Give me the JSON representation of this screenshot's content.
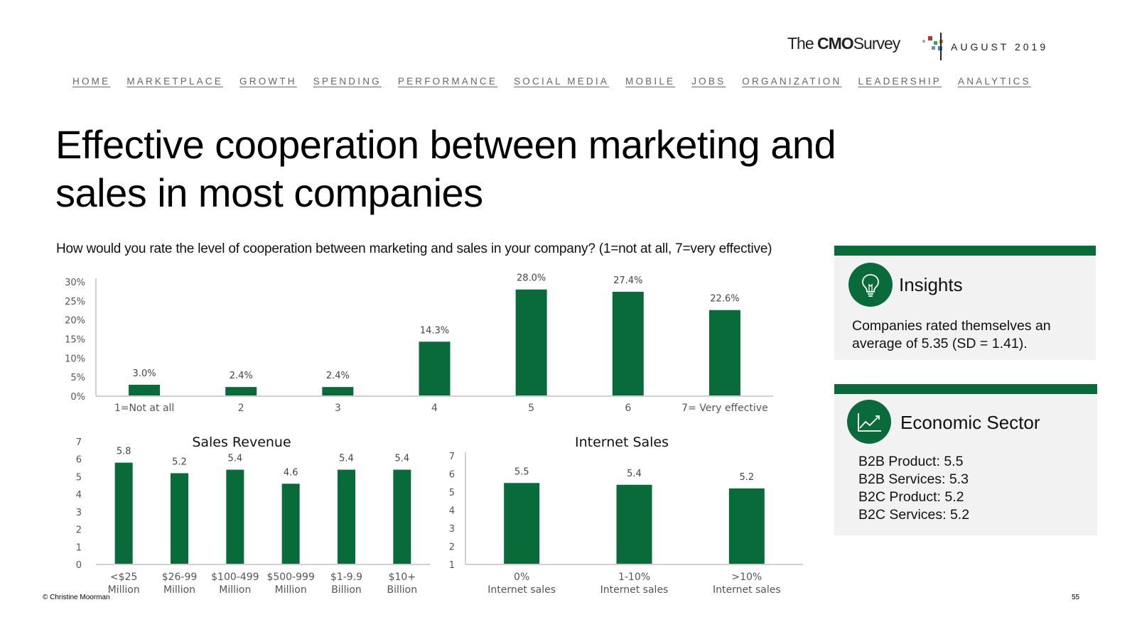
{
  "header": {
    "logo_prefix": "The",
    "logo_bold": "CMO",
    "logo_suffix": "Survey",
    "date": "AUGUST 2019",
    "logo_dot_colors": [
      "#c0392b",
      "#27ae60",
      "#2e86c1",
      "#e67e22",
      "#7f8c8d"
    ]
  },
  "nav": {
    "items": [
      "HOME",
      "MARKETPLACE",
      "GROWTH",
      "SPENDING",
      "PERFORMANCE",
      "SOCIAL MEDIA",
      "MOBILE",
      "JOBS",
      "ORGANIZATION",
      "LEADERSHIP",
      "ANALYTICS"
    ]
  },
  "title": "Effective cooperation between marketing and sales in most companies",
  "question": "How would you rate the level of cooperation between marketing and sales in your company? (1=not at all, 7=very effective)",
  "chart_data": [
    {
      "type": "bar",
      "title": "",
      "categories": [
        "1=Not at all",
        "2",
        "3",
        "4",
        "5",
        "6",
        "7= Very effective"
      ],
      "values": [
        3.0,
        2.4,
        2.4,
        14.3,
        28.0,
        27.4,
        22.6
      ],
      "data_labels": [
        "3.0%",
        "2.4%",
        "2.4%",
        "14.3%",
        "28.0%",
        "27.4%",
        "22.6%"
      ],
      "yticks": [
        "0%",
        "5%",
        "10%",
        "15%",
        "20%",
        "25%",
        "30%"
      ],
      "ylim": [
        0,
        30
      ],
      "color": "#0a6b3a",
      "grid": false
    },
    {
      "type": "bar",
      "title": "Sales Revenue",
      "categories": [
        [
          "<$25",
          "Million"
        ],
        [
          "$26-99",
          "Million"
        ],
        [
          "$100-499",
          "Million"
        ],
        [
          "$500-999",
          "Million"
        ],
        [
          "$1-9.9",
          "Billion"
        ],
        [
          "$10+",
          "Billion"
        ]
      ],
      "values": [
        5.8,
        5.2,
        5.4,
        4.6,
        5.4,
        5.4
      ],
      "data_labels": [
        "5.8",
        "5.2",
        "5.4",
        "4.6",
        "5.4",
        "5.4"
      ],
      "yticks": [
        "0",
        "1",
        "2",
        "3",
        "4",
        "5",
        "6",
        "7"
      ],
      "ylim": [
        0,
        7
      ],
      "color": "#0a6b3a",
      "grid": false
    },
    {
      "type": "bar",
      "title": "Internet Sales",
      "categories": [
        [
          "0%",
          "Internet sales"
        ],
        [
          "1-10%",
          "Internet sales"
        ],
        [
          ">10%",
          "Internet sales"
        ]
      ],
      "values": [
        5.5,
        5.4,
        5.2
      ],
      "data_labels": [
        "5.5",
        "5.4",
        "5.2"
      ],
      "yticks": [
        "1",
        "2",
        "3",
        "4",
        "5",
        "6",
        "7"
      ],
      "ylim": [
        1,
        7
      ],
      "color": "#0a6b3a",
      "grid": false
    }
  ],
  "insights": {
    "title": "Insights",
    "icon": "lightbulb-icon",
    "body": "Companies rated themselves an average of 5.35 (SD = 1.41)."
  },
  "sector": {
    "title": "Economic Sector",
    "icon": "line-chart-icon",
    "lines": [
      "B2B Product:  5.5",
      "B2B Services:  5.3",
      "B2C Product: 5.2",
      "B2C Services: 5.2"
    ]
  },
  "footer": {
    "copyright": "© Christine Moorman",
    "page": "55"
  },
  "colors": {
    "accent": "#0a6b3a",
    "panel_bg": "#f2f2f2"
  }
}
